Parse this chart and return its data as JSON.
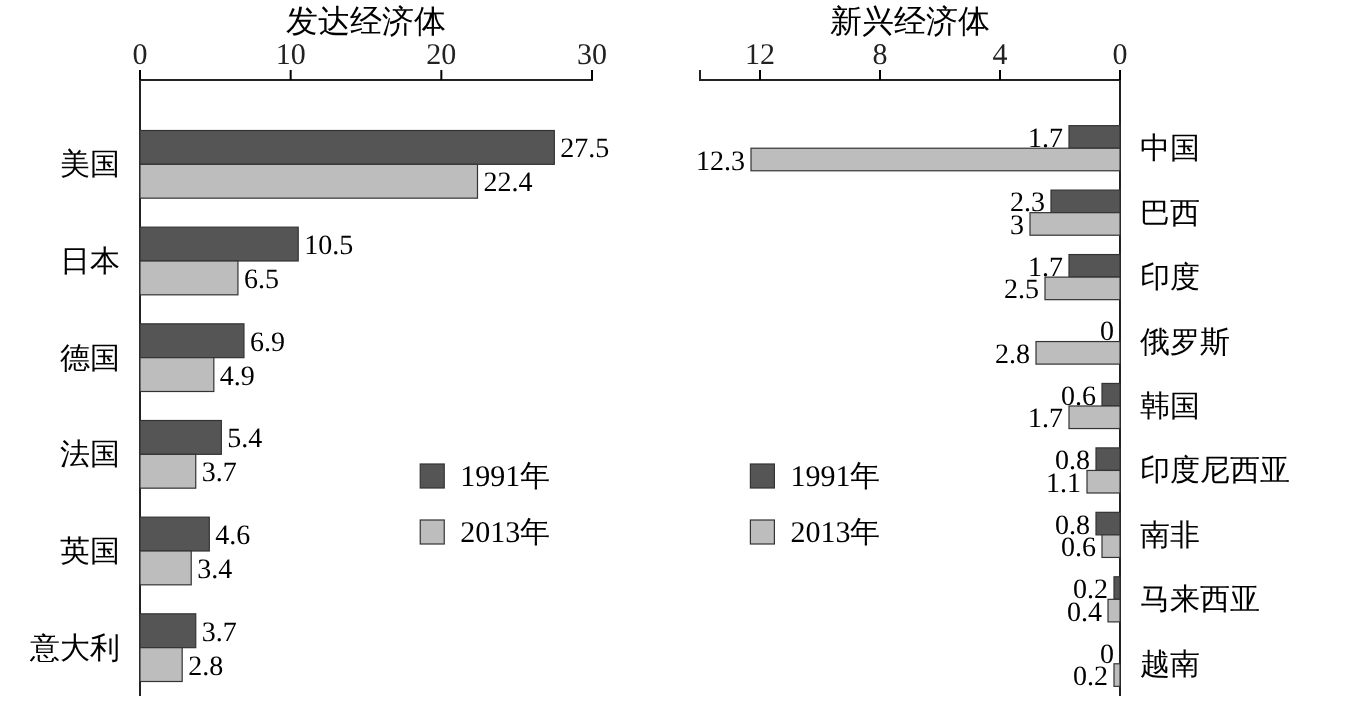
{
  "chart_data": [
    {
      "type": "bar",
      "orientation": "horizontal",
      "title": "发达经济体",
      "categories": [
        "美国",
        "日本",
        "德国",
        "法国",
        "英国",
        "意大利"
      ],
      "series": [
        {
          "name": "1991年",
          "color": "#555555",
          "values": [
            27.5,
            10.5,
            6.9,
            5.4,
            4.6,
            3.7
          ]
        },
        {
          "name": "2013年",
          "color": "#bdbdbd",
          "values": [
            22.4,
            6.5,
            4.9,
            3.7,
            3.4,
            2.8
          ]
        }
      ],
      "xlim": [
        0,
        30
      ],
      "xticks": [
        0,
        10,
        20,
        30
      ],
      "data_labels": true,
      "legend": "right",
      "grid": false
    },
    {
      "type": "bar",
      "orientation": "horizontal",
      "title": "新兴经济体",
      "categories": [
        "中国",
        "巴西",
        "印度",
        "俄罗斯",
        "韩国",
        "印度尼西亚",
        "南非",
        "马来西亚",
        "越南"
      ],
      "series": [
        {
          "name": "1991年",
          "color": "#555555",
          "values": [
            1.7,
            2.3,
            1.7,
            0,
            0.6,
            0.8,
            0.8,
            0.2,
            0
          ]
        },
        {
          "name": "2013年",
          "color": "#bdbdbd",
          "values": [
            12.3,
            3,
            2.5,
            2.8,
            1.7,
            1.1,
            0.6,
            0.4,
            0.2
          ]
        }
      ],
      "xlim": [
        14,
        0
      ],
      "xticks": [
        12,
        8,
        4,
        0
      ],
      "data_labels": true,
      "legend": "left",
      "grid": false
    }
  ]
}
